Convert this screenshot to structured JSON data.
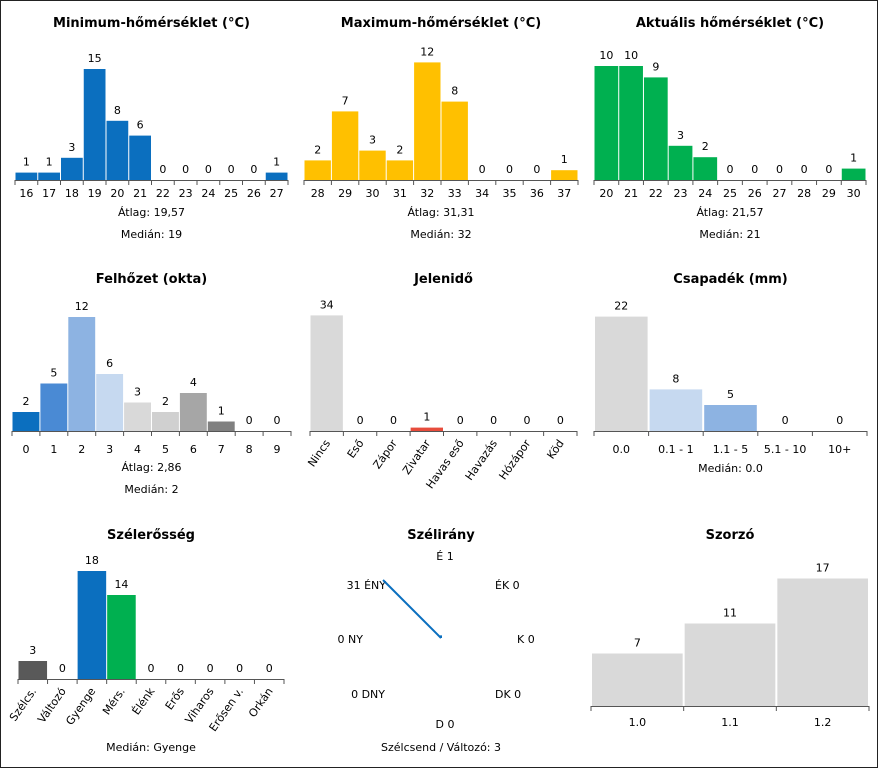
{
  "charts": [
    {
      "type": "bar",
      "title": "Minimum-hőmérséklet (°C)",
      "categories": [
        "16",
        "17",
        "18",
        "19",
        "20",
        "21",
        "22",
        "23",
        "24",
        "25",
        "26",
        "27"
      ],
      "values": [
        1,
        1,
        3,
        15,
        8,
        6,
        0,
        0,
        0,
        0,
        0,
        1
      ],
      "colors": [
        "#0b6fbf",
        "#0b6fbf",
        "#0b6fbf",
        "#0b6fbf",
        "#0b6fbf",
        "#0b6fbf",
        "#0b6fbf",
        "#0b6fbf",
        "#0b6fbf",
        "#0b6fbf",
        "#0b6fbf",
        "#0b6fbf"
      ],
      "stats": [
        "Átlag: 19,57",
        "Medián: 19"
      ],
      "rotate": false
    },
    {
      "type": "bar",
      "title": "Maximum-hőmérséklet (°C)",
      "categories": [
        "28",
        "29",
        "30",
        "31",
        "32",
        "33",
        "34",
        "35",
        "36",
        "37"
      ],
      "values": [
        2,
        7,
        3,
        2,
        12,
        8,
        0,
        0,
        0,
        1
      ],
      "colors": [
        "#ffc000",
        "#ffc000",
        "#ffc000",
        "#ffc000",
        "#ffc000",
        "#ffc000",
        "#ffc000",
        "#ffc000",
        "#ffc000",
        "#ffc000"
      ],
      "stats": [
        "Átlag: 31,31",
        "Medián: 32"
      ],
      "rotate": false
    },
    {
      "type": "bar",
      "title": "Aktuális hőmérséklet (°C)",
      "categories": [
        "20",
        "21",
        "22",
        "23",
        "24",
        "25",
        "26",
        "27",
        "28",
        "29",
        "30"
      ],
      "values": [
        10,
        10,
        9,
        3,
        2,
        0,
        0,
        0,
        0,
        0,
        1
      ],
      "colors": [
        "#00b050",
        "#00b050",
        "#00b050",
        "#00b050",
        "#00b050",
        "#00b050",
        "#00b050",
        "#00b050",
        "#00b050",
        "#00b050",
        "#00b050"
      ],
      "stats": [
        "Átlag: 21,57",
        "Medián: 21"
      ],
      "rotate": false
    },
    {
      "type": "bar",
      "title": "Felhőzet (okta)",
      "categories": [
        "0",
        "1",
        "2",
        "3",
        "4",
        "5",
        "6",
        "7",
        "8",
        "9"
      ],
      "values": [
        2,
        5,
        12,
        6,
        3,
        2,
        4,
        1,
        0,
        0
      ],
      "colors": [
        "#0b6fbf",
        "#4a8ad4",
        "#8db3e2",
        "#c6d9f0",
        "#d9d9d9",
        "#d0d0d0",
        "#a6a6a6",
        "#808080",
        "#808080",
        "#808080"
      ],
      "stats": [
        "Átlag: 2,86",
        "Medián: 2"
      ],
      "rotate": false
    },
    {
      "type": "bar",
      "title": "Jelenidő",
      "categories": [
        "Nincs",
        "Eső",
        "Zápor",
        "Zivatar",
        "Havas eső",
        "Havazás",
        "Hózápor",
        "Köd"
      ],
      "values": [
        34,
        0,
        0,
        1,
        0,
        0,
        0,
        0
      ],
      "colors": [
        "#d9d9d9",
        "#d9d9d9",
        "#d9d9d9",
        "#e74c3c",
        "#d9d9d9",
        "#d9d9d9",
        "#d9d9d9",
        "#d9d9d9"
      ],
      "stats": [],
      "rotate": true
    },
    {
      "type": "bar",
      "title": "Csapadék (mm)",
      "categories": [
        "0.0",
        "0.1 - 1",
        "1.1 - 5",
        "5.1 - 10",
        "10+"
      ],
      "values": [
        22,
        8,
        5,
        0,
        0
      ],
      "colors": [
        "#d9d9d9",
        "#c6d9f0",
        "#8db3e2",
        "#8db3e2",
        "#8db3e2"
      ],
      "stats": [
        "Medián: 0.0"
      ],
      "rotate": false
    },
    {
      "type": "bar",
      "title": "Szélerősség",
      "categories": [
        "Szélcs.",
        "Változó",
        "Gyenge",
        "Mérs.",
        "Élénk",
        "Erős",
        "Viharos",
        "Erősen v.",
        "Orkán"
      ],
      "values": [
        3,
        0,
        18,
        14,
        0,
        0,
        0,
        0,
        0
      ],
      "colors": [
        "#595959",
        "#595959",
        "#0b6fbf",
        "#00b050",
        "#00b050",
        "#00b050",
        "#00b050",
        "#00b050",
        "#00b050"
      ],
      "stats": [
        "Medián: Gyenge"
      ],
      "rotate": true
    },
    {
      "type": "wind-rose",
      "title": "Szélirány",
      "directions": [
        {
          "label": "É",
          "count": 1,
          "text": "É 1"
        },
        {
          "label": "ÉK",
          "count": 0,
          "text": "ÉK 0"
        },
        {
          "label": "K",
          "count": 0,
          "text": "K 0"
        },
        {
          "label": "DK",
          "count": 0,
          "text": "DK 0"
        },
        {
          "label": "D",
          "count": 0,
          "text": "D 0"
        },
        {
          "label": "DNY",
          "count": 0,
          "text": "0 DNY"
        },
        {
          "label": "NY",
          "count": 0,
          "text": "0 NY"
        },
        {
          "label": "ÉNY",
          "count": 31,
          "text": "31 ÉNY"
        }
      ],
      "stats": [
        "Szélcsend / Változó: 3"
      ]
    },
    {
      "type": "bar",
      "title": "Szorzó",
      "categories": [
        "1.0",
        "1.1",
        "1.2"
      ],
      "values": [
        7,
        11,
        17
      ],
      "colors": [
        "#d9d9d9",
        "#d9d9d9",
        "#d9d9d9"
      ],
      "stats": [],
      "rotate": false
    }
  ]
}
